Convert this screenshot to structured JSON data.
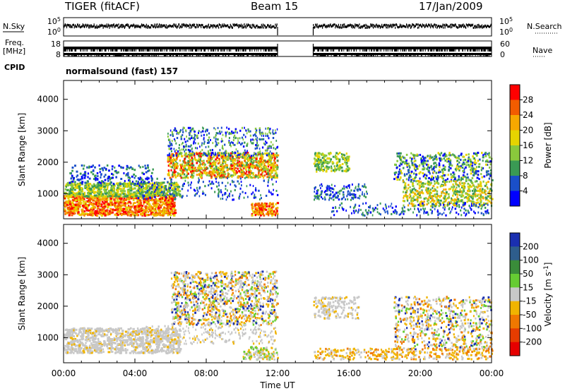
{
  "header": {
    "title": "TIGER (fitACF)",
    "beam": "Beam 15",
    "date": "17/Jan/2009"
  },
  "aux": {
    "nsky_label": "N.Sky",
    "nsky_ticks": [
      "10^5",
      "10^0"
    ],
    "nsearch_label": "N.Search",
    "nsearch_ticks": [
      "10^5",
      "10^0"
    ],
    "freq_label": "Freq.",
    "freq_unit": "[MHz]",
    "freq_ticks": [
      "18",
      "8"
    ],
    "nave_label": "Nave",
    "nave_ticks": [
      "60",
      "0"
    ],
    "cpid_label": "CPID",
    "cpid_text": "normalsound (fast) 157"
  },
  "chart_data": [
    {
      "type": "heatmap",
      "name": "power",
      "xlabel": "",
      "ylabel": "Slant Range [km]",
      "xlim": [
        0,
        24
      ],
      "ylim": [
        200,
        4600
      ],
      "yticks": [
        1000,
        2000,
        3000,
        4000
      ],
      "colorbar_label": "Power [dB]",
      "colorbar_ticks": [
        "28",
        "24",
        "20",
        "16",
        "12",
        "8",
        "4"
      ],
      "colorbar_colors": [
        "#ff0000",
        "#f25c00",
        "#f7a800",
        "#e6d400",
        "#8ac93c",
        "#3a9a54",
        "#1a4fc9",
        "#0000ff"
      ],
      "data_gap_hours": [
        12.0,
        14.0
      ],
      "regions": [
        {
          "t": [
            0,
            6
          ],
          "r": [
            600,
            900
          ],
          "level": "high"
        },
        {
          "t": [
            0,
            6
          ],
          "r": [
            900,
            1300
          ],
          "level": "medium"
        },
        {
          "t": [
            6,
            12
          ],
          "r": [
            1500,
            2200
          ],
          "level": "medium-high"
        },
        {
          "t": [
            6,
            12
          ],
          "r": [
            2200,
            3000
          ],
          "level": "low"
        },
        {
          "t": [
            14,
            16
          ],
          "r": [
            1800,
            2200
          ],
          "level": "low-medium"
        },
        {
          "t": [
            18.5,
            24
          ],
          "r": [
            700,
            2300
          ],
          "level": "medium"
        }
      ]
    },
    {
      "type": "heatmap",
      "name": "velocity",
      "xlabel": "Time UT",
      "ylabel": "Slant Range [km]",
      "xlim": [
        0,
        24
      ],
      "ylim": [
        200,
        4600
      ],
      "xticks": [
        "00:00",
        "04:00",
        "08:00",
        "12:00",
        "16:00",
        "20:00",
        "00:00"
      ],
      "yticks": [
        1000,
        2000,
        3000,
        4000
      ],
      "colorbar_label": "Velocity [m s-1]",
      "colorbar_ticks": [
        "200",
        "100",
        "50",
        "15",
        "-15",
        "-50",
        "-100",
        "-200"
      ],
      "colorbar_colors": [
        "#1a2fb0",
        "#2e5d8c",
        "#3a8c3a",
        "#66cc33",
        "#c8c8c8",
        "#f0b400",
        "#f07800",
        "#e63c00",
        "#e60000"
      ],
      "data_gap_hours": [
        12.0,
        14.0
      ],
      "regions": [
        {
          "t": [
            0,
            6
          ],
          "r": [
            600,
            1300
          ],
          "velocity_class": "ground scatter (~0)"
        },
        {
          "t": [
            6,
            12
          ],
          "r": [
            1500,
            3000
          ],
          "velocity_class": "mixed -50..50"
        },
        {
          "t": [
            18.5,
            24
          ],
          "r": [
            300,
            600
          ],
          "velocity_class": "-15..-50"
        }
      ]
    }
  ]
}
